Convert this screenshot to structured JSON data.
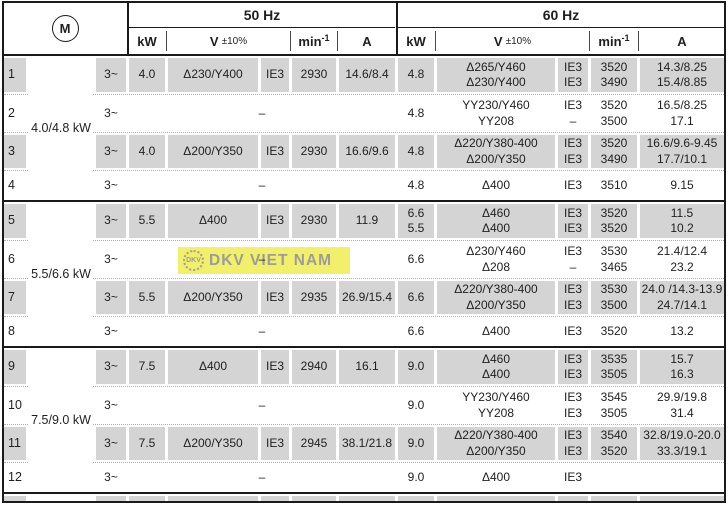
{
  "header": {
    "motor_symbol": "M",
    "sections": [
      {
        "label": "50 Hz"
      },
      {
        "label": "60 Hz"
      }
    ],
    "columns": {
      "kw": "kW",
      "v": "V",
      "v_tol": "±10%",
      "rpm_base": "min",
      "rpm_sup": "-1",
      "a": "A"
    }
  },
  "dash": "–",
  "groups": [
    {
      "label": "4.0/4.8 kW",
      "rows": [
        {
          "num": "1",
          "phase": "3~",
          "shaded": true,
          "f50": {
            "kw": "4.0",
            "v": "Δ230/Y400",
            "ie": "IE3",
            "rpm": "2930",
            "a": "14.6/8.4"
          },
          "f60": {
            "kw": "4.8",
            "v": "Δ265/Y460\nΔ230/Y400",
            "ie": "IE3\nIE3",
            "rpm": "3520\n3490",
            "a": "14.3/8.25\n15.4/8.85"
          }
        },
        {
          "num": "2",
          "phase": "3~",
          "shaded": false,
          "f50": {
            "dash": "–"
          },
          "f60": {
            "kw": "4.8",
            "v": "YY230/Y460\nYY208",
            "ie": "IE3\n–",
            "rpm": "3520\n3500",
            "a": "16.5/8.25\n17.1"
          }
        },
        {
          "num": "3",
          "phase": "3~",
          "shaded": true,
          "f50": {
            "kw": "4.0",
            "v": "Δ200/Y350",
            "ie": "IE3",
            "rpm": "2930",
            "a": "16.6/9.6"
          },
          "f60": {
            "kw": "4.8",
            "v": "Δ220/Y380-400\nΔ200/Y350",
            "ie": "IE3\nIE3",
            "rpm": "3520\n3490",
            "a": "16.6/9.6-9.45\n17.7/10.1"
          }
        },
        {
          "num": "4",
          "phase": "3~",
          "shaded": false,
          "f50": {
            "dash": "–"
          },
          "f60": {
            "kw": "4.8",
            "v": "Δ400",
            "ie": "IE3",
            "rpm": "3510",
            "a": "9.15"
          }
        }
      ]
    },
    {
      "label": "5.5/6.6 kW",
      "rows": [
        {
          "num": "5",
          "phase": "3~",
          "shaded": true,
          "f50": {
            "kw": "5.5",
            "v": "Δ400",
            "ie": "IE3",
            "rpm": "2930",
            "a": "11.9"
          },
          "f60": {
            "kw": "6.6\n5.5",
            "v": "Δ460\nΔ400",
            "ie": "IE3\nIE3",
            "rpm": "3520\n3520",
            "a": "11.5\n10.2"
          }
        },
        {
          "num": "6",
          "phase": "3~",
          "shaded": false,
          "f50": {
            "dash": "–"
          },
          "f60": {
            "kw": "6.6",
            "v": "Δ230/Y460\nΔ208",
            "ie": "IE3\n–",
            "rpm": "3530\n3465",
            "a": "21.4/12.4\n23.2"
          }
        },
        {
          "num": "7",
          "phase": "3~",
          "shaded": true,
          "f50": {
            "kw": "5.5",
            "v": "Δ200/Y350",
            "ie": "IE3",
            "rpm": "2935",
            "a": "26.9/15.4"
          },
          "f60": {
            "kw": "6.6",
            "v": "Δ220/Y380-400\nΔ200/Y350",
            "ie": "IE3\nIE3",
            "rpm": "3530\n3500",
            "a": "24.0 /14.3-13.9\n24.7/14.1"
          }
        },
        {
          "num": "8",
          "phase": "3~",
          "shaded": false,
          "f50": {
            "dash": "–"
          },
          "f60": {
            "kw": "6.6",
            "v": "Δ400",
            "ie": "IE3",
            "rpm": "3520",
            "a": "13.2"
          }
        }
      ]
    },
    {
      "label": "7.5/9.0 kW",
      "rows": [
        {
          "num": "9",
          "phase": "3~",
          "shaded": true,
          "f50": {
            "kw": "7.5",
            "v": "Δ400",
            "ie": "IE3",
            "rpm": "2940",
            "a": "16.1"
          },
          "f60": {
            "kw": "9.0",
            "v": "Δ460\nΔ400",
            "ie": "IE3\nIE3",
            "rpm": "3535\n3505",
            "a": "15.7\n16.3"
          }
        },
        {
          "num": "10",
          "phase": "3~",
          "shaded": false,
          "f50": {
            "dash": "–"
          },
          "f60": {
            "kw": "9.0",
            "v": "YY230/Y460\nYY208",
            "ie": "IE3\nIE3",
            "rpm": "3545\n3505",
            "a": "29.9/19.8\n31.4"
          }
        },
        {
          "num": "11",
          "phase": "3~",
          "shaded": true,
          "f50": {
            "kw": "7.5",
            "v": "Δ200/Y350",
            "ie": "IE3",
            "rpm": "2945",
            "a": "38.1/21.8"
          },
          "f60": {
            "kw": "9.0",
            "v": "Δ220/Y380-400\nΔ200/Y350",
            "ie": "IE3\nIE3",
            "rpm": "3540\n3520",
            "a": "32.8/19.0-20.0\n33.3/19.1"
          }
        },
        {
          "num": "12",
          "phase": "3~",
          "shaded": false,
          "f50": {
            "dash": "–"
          },
          "f60": {
            "kw": "9.0",
            "v": "Δ400",
            "ie": "IE3",
            "rpm": "",
            "a": ""
          }
        }
      ]
    }
  ],
  "watermark": {
    "logo_text": "DKV",
    "text": "DKV VIET NAM",
    "bg": "#f2ef6a",
    "fg": "#9c9c9c"
  },
  "colors": {
    "shaded_cell": "#d4d4d4",
    "border": "#1a1a1a",
    "text": "#1f1f1f"
  }
}
